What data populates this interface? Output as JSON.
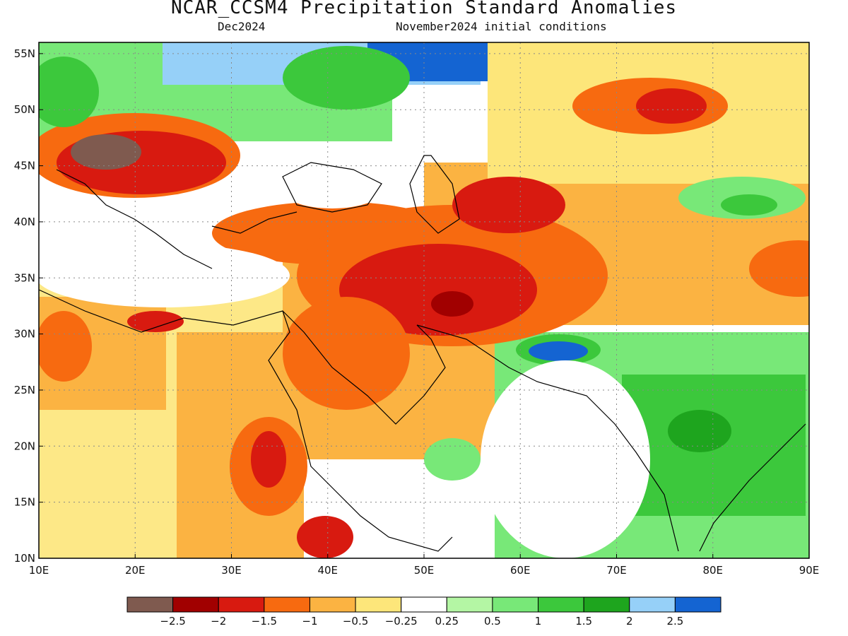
{
  "title": "NCAR_CCSM4 Precipitation Standard Anomalies",
  "target_month": "Dec2024",
  "init_conditions": "November2024 initial conditions",
  "lat_labels": [
    "55N",
    "50N",
    "45N",
    "40N",
    "35N",
    "30N",
    "25N",
    "20N",
    "15N",
    "10N"
  ],
  "lat_values": [
    55,
    50,
    45,
    40,
    35,
    30,
    25,
    20,
    15,
    10
  ],
  "lon_labels": [
    "10E",
    "20E",
    "30E",
    "40E",
    "50E",
    "60E",
    "70E",
    "80E",
    "90E"
  ],
  "lon_values": [
    10,
    20,
    30,
    40,
    50,
    60,
    70,
    80,
    90
  ],
  "extent": {
    "lon": [
      10,
      90
    ],
    "lat": [
      10,
      56
    ]
  },
  "colorbar": {
    "colors": [
      "#7f5a4f",
      "#a10000",
      "#d81a10",
      "#f76a10",
      "#fbb342",
      "#fde67a",
      "#ffffff",
      "#b4f6a4",
      "#78e878",
      "#3cc83c",
      "#1ea51e",
      "#96d0f8",
      "#1464d2"
    ],
    "labels": [
      "−2.5",
      "−2",
      "−1.5",
      "−1",
      "−0.5",
      "−0.25",
      "0.25",
      "0.5",
      "1",
      "1.5",
      "2",
      "2.5"
    ]
  },
  "anomaly_regions": [
    {
      "name": "balkans-dry",
      "lon": 20,
      "lat": 44,
      "rx": 9,
      "ry": 4,
      "level": -2
    },
    {
      "name": "iran-dry",
      "lon": 56,
      "lat": 34,
      "rx": 9,
      "ry": 5,
      "level": -1.5
    },
    {
      "name": "iraq-dry",
      "lon": 46,
      "lat": 34,
      "rx": 5,
      "ry": 4,
      "level": -1.5
    },
    {
      "name": "arabia-dry",
      "lon": 45,
      "lat": 26,
      "rx": 6,
      "ry": 6,
      "level": -1
    },
    {
      "name": "sudan-dry",
      "lon": 35,
      "lat": 19,
      "rx": 3,
      "ry": 4,
      "level": -1.5
    },
    {
      "name": "kazakhstan-dry",
      "lon": 75,
      "lat": 50,
      "rx": 6,
      "ry": 2,
      "level": -1
    },
    {
      "name": "india-wet",
      "lon": 76,
      "lat": 23,
      "rx": 8,
      "ry": 5,
      "level": 1
    },
    {
      "name": "pakistan-wet",
      "lon": 63,
      "lat": 28,
      "rx": 3,
      "ry": 1,
      "level": 2.5
    },
    {
      "name": "russia-wet",
      "lon": 42,
      "lat": 52,
      "rx": 10,
      "ry": 3,
      "level": 1
    },
    {
      "name": "baltic-wet",
      "lon": 15,
      "lat": 52,
      "rx": 4,
      "ry": 3,
      "level": 1
    }
  ]
}
